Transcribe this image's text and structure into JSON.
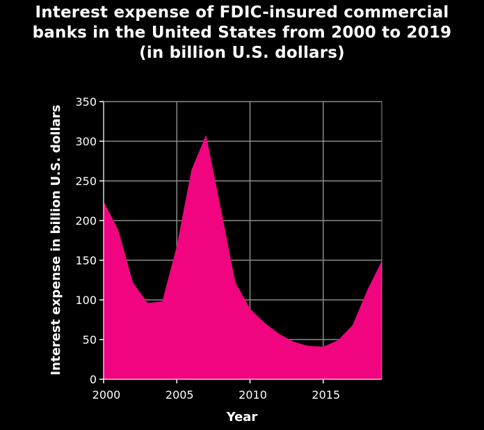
{
  "chart_data": {
    "type": "area",
    "title_lines": [
      "Interest expense of FDIC-insured commercial",
      "banks in the United States from 2000 to 2019",
      "(in billion U.S. dollars)"
    ],
    "xlabel": "Year",
    "ylabel": "Interest expense in billion U.S. dollars",
    "x": [
      2000,
      2001,
      2002,
      2003,
      2004,
      2005,
      2006,
      2007,
      2008,
      2009,
      2010,
      2011,
      2012,
      2013,
      2014,
      2015,
      2016,
      2017,
      2018,
      2019
    ],
    "values": [
      224,
      188,
      122,
      96,
      98,
      168,
      264,
      308,
      216,
      122,
      89,
      71,
      57,
      47,
      42,
      41,
      49,
      68,
      112,
      149
    ],
    "xlim": [
      2000,
      2019
    ],
    "ylim": [
      0,
      350
    ],
    "xticks": [
      2000,
      2005,
      2010,
      2015
    ],
    "yticks": [
      0,
      50,
      100,
      150,
      200,
      250,
      300,
      350
    ],
    "grid": true,
    "fill_color": "#f0047f",
    "background_color": "#000000",
    "grid_color": "#8c8c8c"
  }
}
